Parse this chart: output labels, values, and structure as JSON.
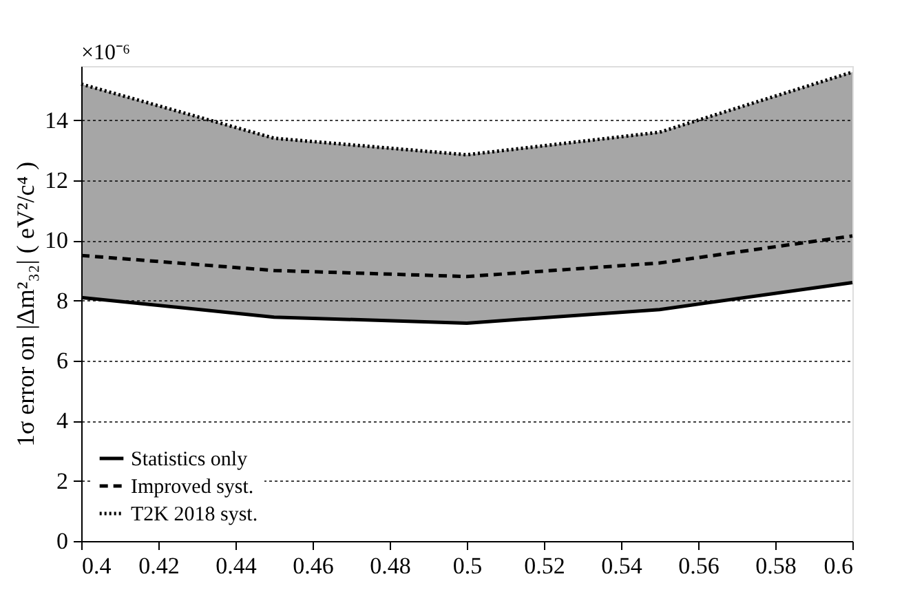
{
  "chart_data": {
    "type": "line",
    "ylabel": "1σ error on |Δm²₃₂| ( eV²/c⁴ )",
    "annotations": [
      "×10⁻⁶"
    ],
    "x": [
      0.4,
      0.45,
      0.5,
      0.55,
      0.6
    ],
    "series": [
      {
        "name": "Statistics only",
        "color": "#000000",
        "line_style": "solid",
        "values": [
          8.1,
          7.45,
          7.25,
          7.7,
          8.6
        ]
      },
      {
        "name": "Improved syst.",
        "color": "#000000",
        "line_style": "dashed",
        "values": [
          9.5,
          9.0,
          8.8,
          9.25,
          10.15
        ]
      },
      {
        "name": "T2K 2018 syst.",
        "color": "#000000",
        "line_style": "dotted",
        "values": [
          15.2,
          13.4,
          12.85,
          13.6,
          15.6
        ],
        "lower": [
          8.1,
          7.45,
          7.25,
          7.7,
          8.6
        ],
        "upper": [
          15.2,
          13.4,
          12.85,
          13.6,
          15.6
        ]
      }
    ],
    "xlim": [
      0.4,
      0.6
    ],
    "xticks": [
      0.4,
      0.42,
      0.44,
      0.46,
      0.48,
      0.5,
      0.52,
      0.54,
      0.56,
      0.58,
      0.6
    ],
    "ylim": [
      0,
      15.8
    ],
    "yticks": [
      0,
      2,
      4,
      6,
      8,
      10,
      12,
      14
    ],
    "grid": "y",
    "legend": "bottom left"
  }
}
